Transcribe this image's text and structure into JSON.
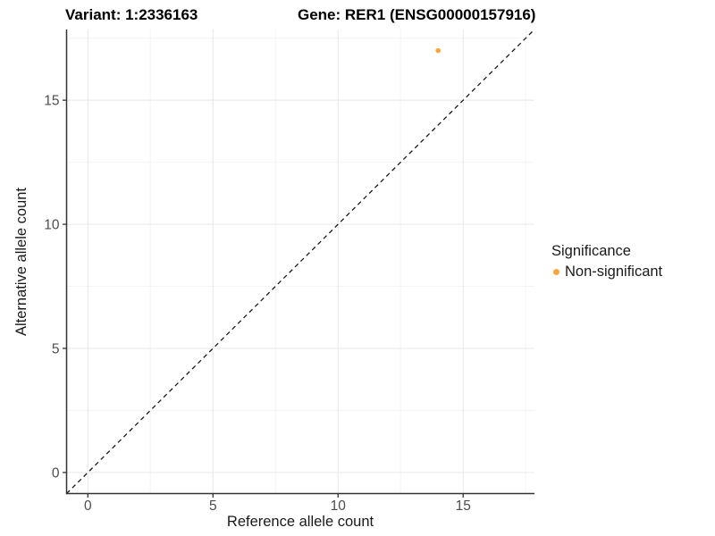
{
  "header": {
    "variant_title": "Variant: 1:2336163",
    "gene_title": "Gene: RER1 (ENSG00000157916)"
  },
  "chart_data": {
    "type": "scatter",
    "title": "Variant: 1:2336163  /  Gene: RER1 (ENSG00000157916)",
    "xlabel": "Reference allele count",
    "ylabel": "Alternative allele count",
    "xlim": [
      -0.85,
      17.85
    ],
    "ylim": [
      -0.85,
      17.85
    ],
    "xticks": [
      0,
      5,
      10,
      15
    ],
    "yticks": [
      0,
      5,
      10,
      15
    ],
    "xminor": [
      2.5,
      7.5,
      12.5,
      17.5
    ],
    "yminor": [
      2.5,
      7.5,
      12.5,
      17.5
    ],
    "grid": true,
    "points": [
      {
        "x": 14,
        "y": 17,
        "series": "Non-significant",
        "color": "#FCA43E"
      }
    ],
    "identity_line": {
      "slope": 1,
      "intercept": 0,
      "style": "dashed",
      "color": "#1a1a1a"
    },
    "legend": {
      "title": "Significance",
      "position": "right",
      "entries": [
        {
          "label": "Non-significant",
          "color": "#FCA43E"
        }
      ]
    },
    "colors": {
      "axis_line": "#333333",
      "tick_label": "#4d4d4d",
      "grid_major": "#e9e9e9",
      "grid_minor": "#f4f4f4",
      "point": "#FCA43E"
    }
  }
}
